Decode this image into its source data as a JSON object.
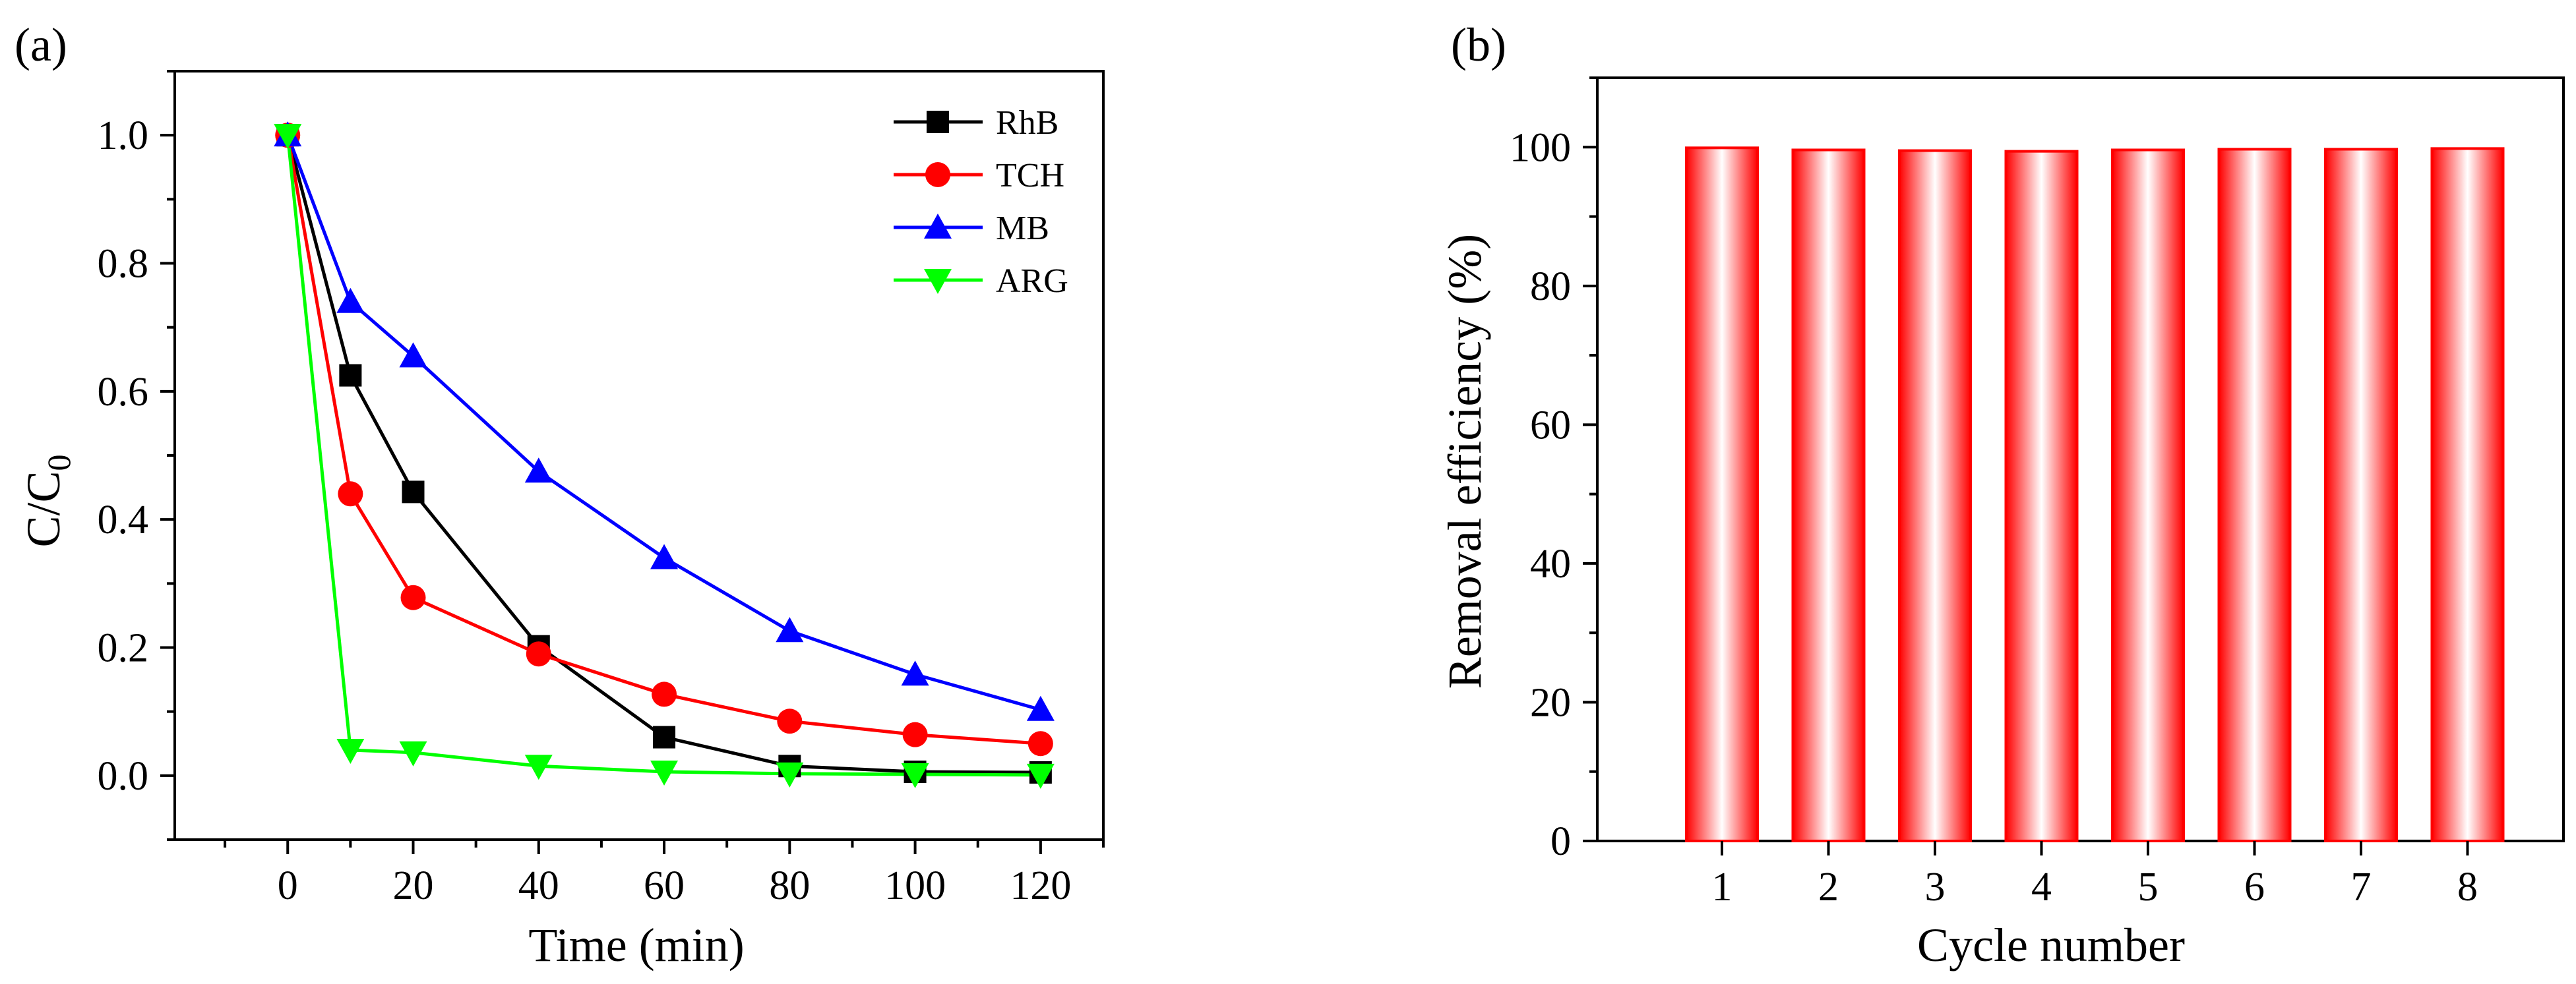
{
  "chart_data": [
    {
      "type": "line",
      "panel_label": "(a)",
      "xlabel": "Time (min)",
      "ylabel_main": "C/C",
      "ylabel_sub": "0",
      "x": [
        0,
        10,
        20,
        40,
        60,
        80,
        100,
        120
      ],
      "xlim": [
        -18,
        130
      ],
      "ylim": [
        -0.1,
        1.1
      ],
      "xticks": [
        0,
        20,
        40,
        60,
        80,
        100,
        120
      ],
      "xtick_labels": [
        "0",
        "20",
        "40",
        "60",
        "80",
        "100",
        "120"
      ],
      "yticks": [
        0.0,
        0.2,
        0.4,
        0.6,
        0.8,
        1.0
      ],
      "ytick_labels": [
        "0.0",
        "0.2",
        "0.4",
        "0.6",
        "0.8",
        "1.0"
      ],
      "legend_position": "top-right",
      "series": [
        {
          "name": "RhB",
          "color": "#000000",
          "marker": "square",
          "values": [
            1.0,
            0.625,
            0.443,
            0.202,
            0.06,
            0.015,
            0.006,
            0.005
          ]
        },
        {
          "name": "TCH",
          "color": "#ff0000",
          "marker": "circle",
          "values": [
            1.0,
            0.44,
            0.278,
            0.19,
            0.127,
            0.085,
            0.064,
            0.05
          ]
        },
        {
          "name": "MB",
          "color": "#0000ff",
          "marker": "triangle-up",
          "values": [
            1.0,
            0.74,
            0.655,
            0.475,
            0.34,
            0.226,
            0.158,
            0.103
          ]
        },
        {
          "name": "ARG",
          "color": "#00ff00",
          "marker": "triangle-down",
          "values": [
            1.0,
            0.04,
            0.036,
            0.015,
            0.006,
            0.003,
            0.002,
            0.001
          ]
        }
      ]
    },
    {
      "type": "bar",
      "panel_label": "(b)",
      "xlabel": "Cycle number",
      "ylabel": "Removal efficiency (%)",
      "categories": [
        "1",
        "2",
        "3",
        "4",
        "5",
        "6",
        "7",
        "8"
      ],
      "values": [
        99.9,
        99.6,
        99.5,
        99.4,
        99.6,
        99.7,
        99.7,
        99.8
      ],
      "ylim": [
        0,
        110
      ],
      "yticks": [
        0,
        20,
        40,
        60,
        80,
        100
      ],
      "ytick_labels": [
        "0",
        "20",
        "40",
        "60",
        "80",
        "100"
      ],
      "bar_color": "#ff0000"
    }
  ]
}
